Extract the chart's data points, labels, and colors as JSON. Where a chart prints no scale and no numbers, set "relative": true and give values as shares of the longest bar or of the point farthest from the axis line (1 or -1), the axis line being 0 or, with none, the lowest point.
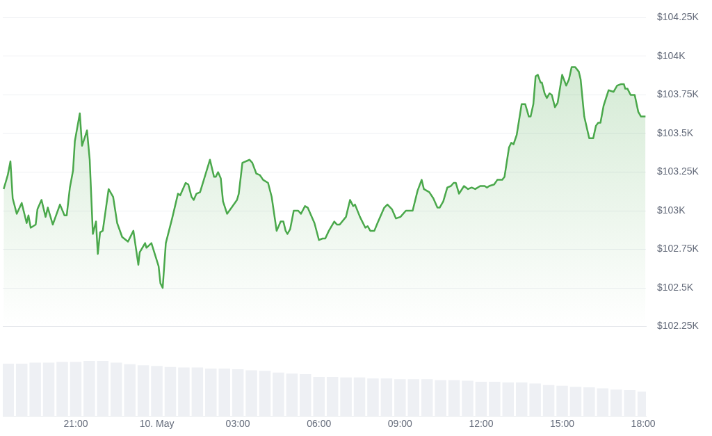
{
  "chart_data": [
    {
      "type": "area",
      "tick_labels": "y",
      "grid": "y",
      "legend": false,
      "marker": "none",
      "line_style": "solid",
      "xlim": [
        "--05-09T18:18",
        "--05-10T18:06"
      ],
      "xticks": [
        {
          "value": "--05-09T21:00",
          "label": "21:00"
        },
        {
          "value": "--05-10T00:00",
          "label": "10. May"
        },
        {
          "value": "--05-10T03:00",
          "label": "03:00"
        },
        {
          "value": "--05-10T06:00",
          "label": "06:00"
        },
        {
          "value": "--05-10T09:00",
          "label": "09:00"
        },
        {
          "value": "--05-10T12:00",
          "label": "12:00"
        },
        {
          "value": "--05-10T15:00",
          "label": "15:00"
        },
        {
          "value": "--05-10T18:00",
          "label": "18:00"
        }
      ],
      "ylim": [
        102250,
        104250
      ],
      "yticks": [
        {
          "value": 102250,
          "label": "$102.25K"
        },
        {
          "value": 102500,
          "label": "$102.5K"
        },
        {
          "value": 102750,
          "label": "$102.75K"
        },
        {
          "value": 103000,
          "label": "$103K"
        },
        {
          "value": 103250,
          "label": "$103.25K"
        },
        {
          "value": 103500,
          "label": "$103.5K"
        },
        {
          "value": 103750,
          "label": "$103.75K"
        },
        {
          "value": 104000,
          "label": "$104K"
        },
        {
          "value": 104250,
          "label": "$104.25K"
        }
      ],
      "series": [
        {
          "color": "#4aa84b",
          "x": [
            "--05-09T18:20",
            "--05-09T18:29",
            "--05-09T18:35",
            "--05-09T18:40",
            "--05-09T18:49",
            "--05-09T19:00",
            "--05-09T19:11",
            "--05-09T19:15",
            "--05-09T19:20",
            "--05-09T19:31",
            "--05-09T19:35",
            "--05-09T19:44",
            "--05-09T19:53",
            "--05-09T19:58",
            "--05-09T20:09",
            "--05-09T20:25",
            "--05-09T20:35",
            "--05-09T20:40",
            "--05-09T20:47",
            "--05-09T20:54",
            "--05-09T20:58",
            "--05-09T21:09",
            "--05-09T21:14",
            "--05-09T21:25",
            "--05-09T21:31",
            "--05-09T21:38",
            "--05-09T21:45",
            "--05-09T21:49",
            "--05-09T21:54",
            "--05-09T22:00",
            "--05-09T22:13",
            "--05-09T22:23",
            "--05-09T22:32",
            "--05-09T22:43",
            "--05-09T22:56",
            "--05-09T23:08",
            "--05-09T23:19",
            "--05-09T23:22",
            "--05-09T23:34",
            "--05-09T23:37",
            "--05-09T23:48",
            "--05-10T00:04",
            "--05-10T00:08",
            "--05-10T00:13",
            "--05-10T00:20",
            "--05-10T00:34",
            "--05-10T00:47",
            "--05-10T00:52",
            "--05-10T01:04",
            "--05-10T01:10",
            "--05-10T01:17",
            "--05-10T01:22",
            "--05-10T01:28",
            "--05-10T01:36",
            "--05-10T01:58",
            "--05-10T02:07",
            "--05-10T02:11",
            "--05-10T02:16",
            "--05-10T02:22",
            "--05-10T02:27",
            "--05-10T02:36",
            "--05-10T02:46",
            "--05-10T02:58",
            "--05-10T03:02",
            "--05-10T03:10",
            "--05-10T03:26",
            "--05-10T03:32",
            "--05-10T03:41",
            "--05-10T03:49",
            "--05-10T03:56",
            "--05-10T04:07",
            "--05-10T04:15",
            "--05-10T04:26",
            "--05-10T04:35",
            "--05-10T04:41",
            "--05-10T04:46",
            "--05-10T04:50",
            "--05-10T04:56",
            "--05-10T05:04",
            "--05-10T05:14",
            "--05-10T05:20",
            "--05-10T05:29",
            "--05-10T05:35",
            "--05-10T05:50",
            "--05-10T06:00",
            "--05-10T06:08",
            "--05-10T06:14",
            "--05-10T06:22",
            "--05-10T06:34",
            "--05-10T06:40",
            "--05-10T06:46",
            "--05-10T07:00",
            "--05-10T07:09",
            "--05-10T07:16",
            "--05-10T07:20",
            "--05-10T07:31",
            "--05-10T07:43",
            "--05-10T07:48",
            "--05-10T07:54",
            "--05-10T08:03",
            "--05-10T08:10",
            "--05-10T08:25",
            "--05-10T08:32",
            "--05-10T08:42",
            "--05-10T08:51",
            "--05-10T09:01",
            "--05-10T09:13",
            "--05-10T09:19",
            "--05-10T09:28",
            "--05-10T09:39",
            "--05-10T09:48",
            "--05-10T09:53",
            "--05-10T10:05",
            "--05-10T10:14",
            "--05-10T10:23",
            "--05-10T10:28",
            "--05-10T10:36",
            "--05-10T10:45",
            "--05-10T10:53",
            "--05-10T10:59",
            "--05-10T11:04",
            "--05-10T11:11",
            "--05-10T11:22",
            "--05-10T11:31",
            "--05-10T11:39",
            "--05-10T11:47",
            "--05-10T11:58",
            "--05-10T12:08",
            "--05-10T12:13",
            "--05-10T12:18",
            "--05-10T12:29",
            "--05-10T12:36",
            "--05-10T12:47",
            "--05-10T12:52",
            "--05-10T13:02",
            "--05-10T13:07",
            "--05-10T13:12",
            "--05-10T13:19",
            "--05-10T13:30",
            "--05-10T13:38",
            "--05-10T13:46",
            "--05-10T13:50",
            "--05-10T13:56",
            "--05-10T14:01",
            "--05-10T14:06",
            "--05-10T14:12",
            "--05-10T14:15",
            "--05-10T14:21",
            "--05-10T14:26",
            "--05-10T14:32",
            "--05-10T14:37",
            "--05-10T14:44",
            "--05-10T14:50",
            "--05-10T15:00",
            "--05-10T15:09",
            "--05-10T15:15",
            "--05-10T15:21",
            "--05-10T15:29",
            "--05-10T15:37",
            "--05-10T15:41",
            "--05-10T15:49",
            "--05-10T16:00",
            "--05-10T16:09",
            "--05-10T16:15",
            "--05-10T16:20",
            "--05-10T16:25",
            "--05-10T16:32",
            "--05-10T16:43",
            "--05-10T16:54",
            "--05-10T17:02",
            "--05-10T17:11",
            "--05-10T17:17",
            "--05-10T17:20",
            "--05-10T17:25",
            "--05-10T17:32",
            "--05-10T17:37",
            "--05-10T17:41",
            "--05-10T17:49",
            "--05-10T17:55",
            "--05-10T18:05"
          ],
          "values": [
            103140,
            103230,
            103320,
            103080,
            102980,
            103050,
            102920,
            102970,
            102890,
            102910,
            103010,
            103070,
            102960,
            103020,
            102910,
            103040,
            102970,
            102970,
            103150,
            103260,
            103450,
            103630,
            103420,
            103520,
            103330,
            102850,
            102930,
            102720,
            102860,
            102870,
            103140,
            103090,
            102920,
            102830,
            102800,
            102870,
            102650,
            102730,
            102790,
            102760,
            102790,
            102640,
            102530,
            102500,
            102790,
            102950,
            103110,
            103100,
            103180,
            103170,
            103090,
            103070,
            103110,
            103120,
            103330,
            103220,
            103220,
            103250,
            103210,
            103060,
            102980,
            103020,
            103070,
            103110,
            103310,
            103330,
            103310,
            103240,
            103230,
            103200,
            103180,
            103090,
            102870,
            102930,
            102930,
            102870,
            102850,
            102880,
            103000,
            103000,
            102980,
            103030,
            103020,
            102920,
            102810,
            102820,
            102820,
            102870,
            102930,
            102910,
            102910,
            102960,
            103070,
            103030,
            103040,
            102960,
            102890,
            102900,
            102870,
            102870,
            102920,
            103020,
            103040,
            103010,
            102950,
            102960,
            103000,
            103000,
            103000,
            103130,
            103200,
            103140,
            103120,
            103080,
            103020,
            103020,
            103060,
            103150,
            103160,
            103180,
            103180,
            103110,
            103160,
            103140,
            103150,
            103140,
            103160,
            103160,
            103150,
            103160,
            103170,
            103200,
            103200,
            103220,
            103410,
            103440,
            103430,
            103490,
            103690,
            103690,
            103610,
            103610,
            103690,
            103870,
            103880,
            103830,
            103830,
            103760,
            103730,
            103760,
            103750,
            103670,
            103700,
            103880,
            103810,
            103850,
            103930,
            103930,
            103900,
            103850,
            103610,
            103470,
            103470,
            103550,
            103570,
            103570,
            103680,
            103780,
            103770,
            103810,
            103820,
            103820,
            103790,
            103790,
            103750,
            103750,
            103750,
            103640,
            103610,
            103610
          ]
        }
      ]
    },
    {
      "type": "bar",
      "relative": true,
      "tick_labels": "x",
      "legend": false,
      "color": "#eef0f4",
      "xlim": [
        "--05-09T18:18",
        "--05-10T18:06"
      ],
      "xticks": [
        {
          "value": "--05-09T21:00",
          "label": "21:00"
        },
        {
          "value": "--05-10T00:00",
          "label": "10. May"
        },
        {
          "value": "--05-10T03:00",
          "label": "03:00"
        },
        {
          "value": "--05-10T06:00",
          "label": "06:00"
        },
        {
          "value": "--05-10T09:00",
          "label": "09:00"
        },
        {
          "value": "--05-10T12:00",
          "label": "12:00"
        },
        {
          "value": "--05-10T15:00",
          "label": "15:00"
        },
        {
          "value": "--05-10T18:00",
          "label": "18:00"
        }
      ],
      "x": [
        "--05-09T18:30",
        "--05-09T19:00",
        "--05-09T19:30",
        "--05-09T20:00",
        "--05-09T20:30",
        "--05-09T21:00",
        "--05-09T21:30",
        "--05-09T22:00",
        "--05-09T22:30",
        "--05-09T23:00",
        "--05-09T23:30",
        "--05-10T00:00",
        "--05-10T00:30",
        "--05-10T01:00",
        "--05-10T01:30",
        "--05-10T02:00",
        "--05-10T02:30",
        "--05-10T03:00",
        "--05-10T03:30",
        "--05-10T04:00",
        "--05-10T04:30",
        "--05-10T05:00",
        "--05-10T05:30",
        "--05-10T06:00",
        "--05-10T06:30",
        "--05-10T07:00",
        "--05-10T07:30",
        "--05-10T08:00",
        "--05-10T08:30",
        "--05-10T09:00",
        "--05-10T09:30",
        "--05-10T10:00",
        "--05-10T10:30",
        "--05-10T11:00",
        "--05-10T11:30",
        "--05-10T12:00",
        "--05-10T12:30",
        "--05-10T13:00",
        "--05-10T13:30",
        "--05-10T14:00",
        "--05-10T14:30",
        "--05-10T15:00",
        "--05-10T15:30",
        "--05-10T16:00",
        "--05-10T16:30",
        "--05-10T17:00",
        "--05-10T17:30",
        "--05-10T18:00"
      ],
      "values": [
        0.95,
        0.95,
        0.97,
        0.97,
        0.98,
        0.98,
        1,
        1,
        0.97,
        0.94,
        0.92,
        0.91,
        0.89,
        0.88,
        0.88,
        0.86,
        0.86,
        0.85,
        0.83,
        0.82,
        0.79,
        0.77,
        0.76,
        0.71,
        0.71,
        0.7,
        0.7,
        0.68,
        0.68,
        0.67,
        0.67,
        0.67,
        0.65,
        0.65,
        0.64,
        0.62,
        0.62,
        0.61,
        0.61,
        0.59,
        0.56,
        0.55,
        0.53,
        0.52,
        0.5,
        0.48,
        0.47,
        0.44
      ]
    }
  ]
}
